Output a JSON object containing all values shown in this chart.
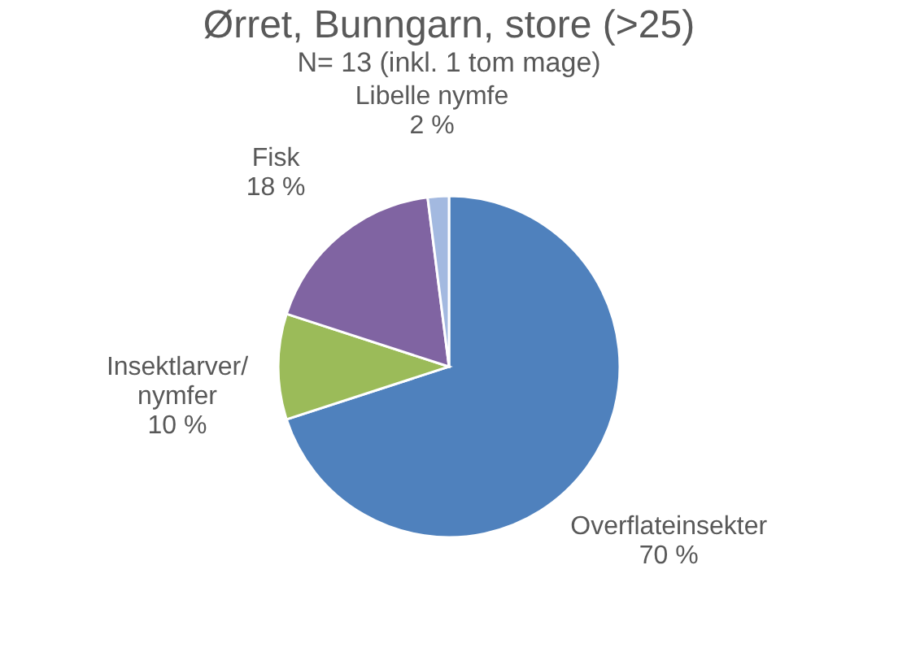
{
  "chart_data": {
    "type": "pie",
    "title": "Ørret, Bunngarn, store (>25)",
    "subtitle": "N= 13 (inkl. 1 tom mage)",
    "categories": [
      "Overflateinsekter",
      "Insektlarver/nymfer",
      "Fisk",
      "Libelle nymfe"
    ],
    "values": [
      70,
      10,
      18,
      2
    ],
    "colors": [
      "#4f81bd",
      "#9bbb59",
      "#8064a2",
      "#a3b9e0"
    ],
    "value_labels": [
      "70 %",
      "10 %",
      "18 %",
      "2 %"
    ],
    "legend": false
  }
}
